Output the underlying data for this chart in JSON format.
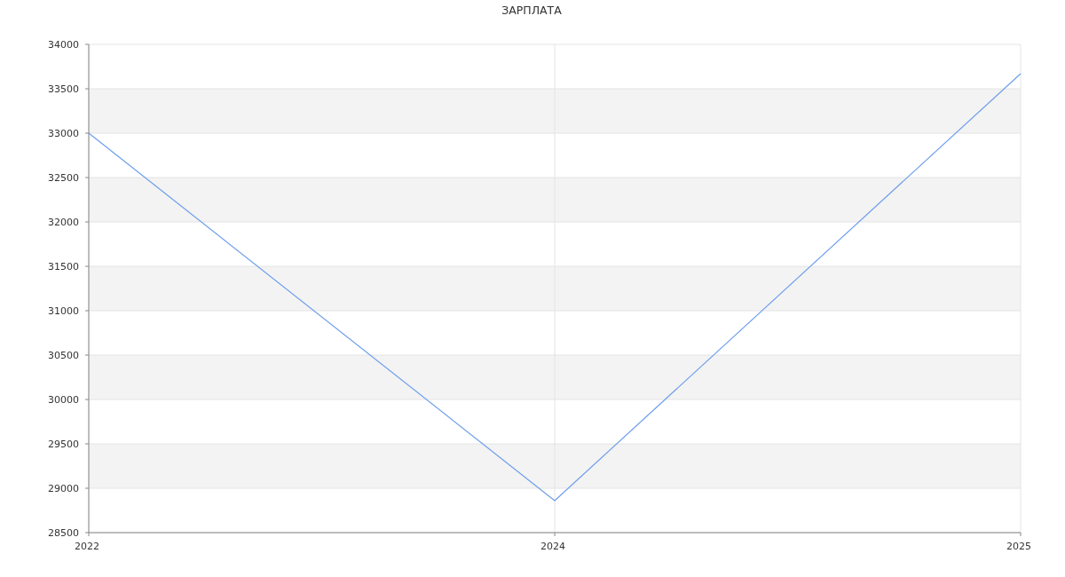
{
  "chart_data": {
    "type": "line",
    "title": "ЗАРПЛАТА",
    "categories": [
      "2022",
      "2024",
      "2025"
    ],
    "series": [
      {
        "color": "#6d9eeb",
        "values": [
          33000,
          28860,
          33670
        ]
      }
    ],
    "ylim": [
      28500,
      34000
    ],
    "yticks": [
      28500,
      29000,
      29500,
      30000,
      30500,
      31000,
      31500,
      32000,
      32500,
      33000,
      33500,
      34000
    ],
    "grid": true,
    "marker": "none",
    "line_style": "solid"
  }
}
